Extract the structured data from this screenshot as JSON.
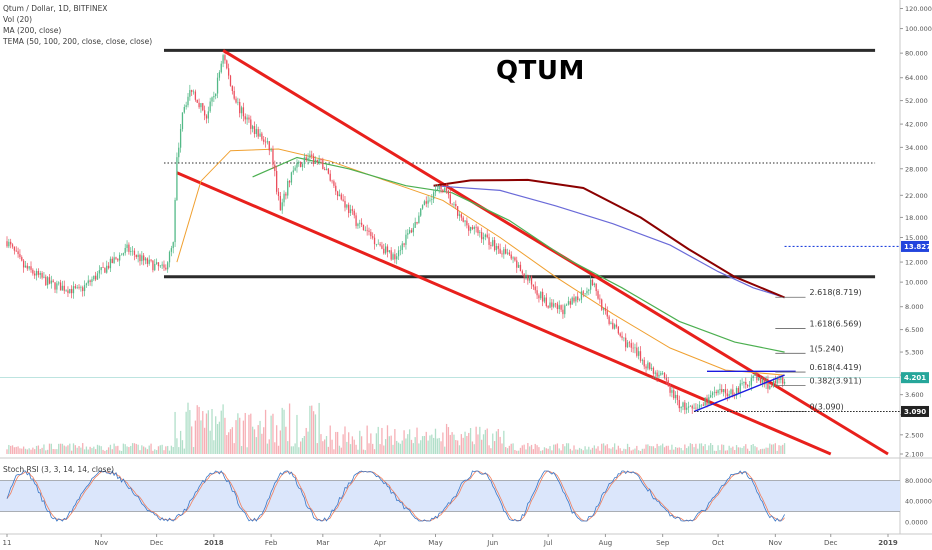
{
  "header": {
    "symbol_line": "Qtum / Dollar, 1D, BITFINEX",
    "vol_line": "Vol (20)",
    "ma_line": "MA (200, close)",
    "tema_line": "TEMA (50, 100, 200, close, close, close)",
    "stoch_line": "Stoch RSI (3, 3, 14, 14, close)"
  },
  "annotation_title": "QTUM",
  "colors": {
    "up": "#53b987",
    "down": "#eb4d5c",
    "channel": "#e8201c",
    "level": "#2b2b2b",
    "ma": "#f0a030",
    "tema50": "#4caf50",
    "tema100": "#6a6ad8",
    "tema200": "#8b0000",
    "triangle": "#1a1ae0",
    "stoch_k": "#3a78c8",
    "stoch_d": "#f08060",
    "stoch_band": "#dbe6fb"
  },
  "chart_data": {
    "type": "candlestick",
    "title": "QTUM",
    "y_scale": "log",
    "ylim": [
      2.1,
      125
    ],
    "price_axis_labels": [
      "120.000",
      "100.000",
      "80.000",
      "64.000",
      "52.000",
      "42.000",
      "34.000",
      "28.000",
      "22.000",
      "18.000",
      "15.000",
      "12.000",
      "10.000",
      "8.000",
      "6.500",
      "5.300",
      "4.300",
      "3.600",
      "3.000",
      "2.500",
      "2.100"
    ],
    "price_axis_values": [
      120,
      100,
      80,
      64,
      52,
      42,
      34,
      28,
      22,
      18,
      15,
      12,
      10,
      8,
      6.5,
      5.3,
      4.3,
      3.6,
      3.0,
      2.5,
      2.1
    ],
    "x_labels": [
      "11",
      "Nov",
      "Dec",
      "2018",
      "Feb",
      "Mar",
      "Apr",
      "May",
      "Jun",
      "Jul",
      "Aug",
      "Sep",
      "Oct",
      "Nov",
      "Dec",
      "2019"
    ],
    "x_dates": [
      "2017-09-11",
      "2017-11-01",
      "2017-12-01",
      "2018-01-01",
      "2018-02-01",
      "2018-03-01",
      "2018-04-01",
      "2018-05-01",
      "2018-06-01",
      "2018-07-01",
      "2018-08-01",
      "2018-09-01",
      "2018-10-01",
      "2018-11-01",
      "2018-12-01",
      "2019-01-01"
    ],
    "price_path": [
      [
        "2017-09-11",
        14.5
      ],
      [
        "2017-09-20",
        11.5
      ],
      [
        "2017-10-05",
        9.8
      ],
      [
        "2017-10-20",
        9.2
      ],
      [
        "2017-11-01",
        11.0
      ],
      [
        "2017-11-15",
        13.5
      ],
      [
        "2017-11-25",
        12.0
      ],
      [
        "2017-12-05",
        11.2
      ],
      [
        "2017-12-10",
        14.0
      ],
      [
        "2017-12-12",
        30.0
      ],
      [
        "2017-12-15",
        48.0
      ],
      [
        "2017-12-20",
        58.0
      ],
      [
        "2017-12-28",
        45.0
      ],
      [
        "2018-01-02",
        57.0
      ],
      [
        "2018-01-06",
        80.0
      ],
      [
        "2018-01-10",
        60.0
      ],
      [
        "2018-01-15",
        48.0
      ],
      [
        "2018-01-22",
        41.0
      ],
      [
        "2018-02-01",
        33.0
      ],
      [
        "2018-02-06",
        19.0
      ],
      [
        "2018-02-12",
        27.0
      ],
      [
        "2018-02-20",
        31.0
      ],
      [
        "2018-03-01",
        29.0
      ],
      [
        "2018-03-10",
        22.0
      ],
      [
        "2018-03-20",
        17.0
      ],
      [
        "2018-03-30",
        14.5
      ],
      [
        "2018-04-08",
        12.5
      ],
      [
        "2018-04-20",
        17.0
      ],
      [
        "2018-04-28",
        22.0
      ],
      [
        "2018-05-05",
        23.5
      ],
      [
        "2018-05-15",
        17.5
      ],
      [
        "2018-05-28",
        15.0
      ],
      [
        "2018-06-10",
        12.5
      ],
      [
        "2018-06-24",
        9.5
      ],
      [
        "2018-07-01",
        8.0
      ],
      [
        "2018-07-10",
        7.8
      ],
      [
        "2018-07-25",
        10.0
      ],
      [
        "2018-08-01",
        7.4
      ],
      [
        "2018-08-10",
        6.0
      ],
      [
        "2018-08-25",
        4.6
      ],
      [
        "2018-09-01",
        4.2
      ],
      [
        "2018-09-10",
        3.3
      ],
      [
        "2018-09-18",
        3.09
      ],
      [
        "2018-09-28",
        3.6
      ],
      [
        "2018-10-10",
        3.7
      ],
      [
        "2018-10-20",
        4.2
      ],
      [
        "2018-10-30",
        3.9
      ],
      [
        "2018-11-06",
        4.2
      ]
    ],
    "moving_averages": [
      {
        "name": "MA (200, close)",
        "points": [
          [
            "2017-12-12",
            12.0
          ],
          [
            "2017-12-25",
            25.0
          ],
          [
            "2018-01-10",
            33.0
          ],
          [
            "2018-02-05",
            33.5
          ],
          [
            "2018-03-05",
            30.0
          ],
          [
            "2018-04-05",
            25.0
          ],
          [
            "2018-05-05",
            21.0
          ],
          [
            "2018-06-05",
            15.0
          ],
          [
            "2018-07-05",
            10.5
          ],
          [
            "2018-08-05",
            7.5
          ],
          [
            "2018-09-05",
            5.5
          ],
          [
            "2018-10-05",
            4.5
          ],
          [
            "2018-11-06",
            4.3
          ]
        ]
      },
      {
        "name": "TEMA 50",
        "points": [
          [
            "2018-01-22",
            26.0
          ],
          [
            "2018-02-15",
            31.0
          ],
          [
            "2018-03-15",
            28.0
          ],
          [
            "2018-04-15",
            24.0
          ],
          [
            "2018-05-10",
            22.5
          ],
          [
            "2018-06-10",
            17.5
          ],
          [
            "2018-07-10",
            12.5
          ],
          [
            "2018-08-10",
            9.5
          ],
          [
            "2018-09-10",
            7.0
          ],
          [
            "2018-10-10",
            5.8
          ],
          [
            "2018-11-06",
            5.3
          ]
        ]
      },
      {
        "name": "TEMA 100",
        "points": [
          [
            "2018-04-30",
            24.0
          ],
          [
            "2018-06-05",
            23.0
          ],
          [
            "2018-07-05",
            20.0
          ],
          [
            "2018-08-05",
            17.0
          ],
          [
            "2018-09-05",
            14.0
          ],
          [
            "2018-10-01",
            11.0
          ],
          [
            "2018-10-20",
            9.5
          ],
          [
            "2018-11-06",
            8.7
          ]
        ]
      },
      {
        "name": "TEMA 200",
        "points": [
          [
            "2018-04-30",
            24.0
          ],
          [
            "2018-05-20",
            25.2
          ],
          [
            "2018-06-20",
            25.3
          ],
          [
            "2018-07-20",
            23.5
          ],
          [
            "2018-08-20",
            18.0
          ],
          [
            "2018-09-15",
            13.5
          ],
          [
            "2018-10-10",
            10.5
          ],
          [
            "2018-11-06",
            8.7
          ]
        ]
      }
    ],
    "channel_lines": [
      {
        "from": [
          "2017-12-12",
          27.0
        ],
        "to": [
          "2018-12-01",
          2.1
        ]
      },
      {
        "from": [
          "2018-01-06",
          82.0
        ],
        "to": [
          "2019-01-01",
          2.1
        ]
      }
    ],
    "horizontal_levels": [
      {
        "value": 82.0,
        "from": "2017-12-05",
        "to": "2018-12-25",
        "style": "solid"
      },
      {
        "value": 10.5,
        "from": "2017-12-05",
        "to": "2018-12-25",
        "style": "solid"
      },
      {
        "value": 29.5,
        "from": "2017-12-05",
        "to": "2018-12-25",
        "style": "dotted"
      }
    ],
    "triangle": [
      {
        "from": [
          "2018-09-18",
          3.09
        ],
        "to": [
          "2018-11-06",
          4.3
        ]
      },
      {
        "from": [
          "2018-09-25",
          4.45
        ],
        "to": [
          "2018-11-12",
          4.45
        ]
      }
    ],
    "fibonacci": [
      {
        "label": "2.618(8.719)",
        "value": 8.719
      },
      {
        "label": "1.618(6.569)",
        "value": 6.569
      },
      {
        "label": "1(5.240)",
        "value": 5.24
      },
      {
        "label": "0.618(4.419)",
        "value": 4.419
      },
      {
        "label": "0.382(3.911)",
        "value": 3.911
      },
      {
        "label": "0(3.090)",
        "value": 3.09
      }
    ],
    "price_tags": [
      {
        "text": "13.827",
        "value": 13.827,
        "color": "#2244dd"
      },
      {
        "text": "4.201",
        "value": 4.201,
        "color": "#26a69a"
      },
      {
        "text": "3.090",
        "value": 3.09,
        "color": "#222222"
      }
    ],
    "stoch_axis_labels": [
      "80.0000",
      "40.0000",
      "0.0000"
    ],
    "stoch_axis_values": [
      80,
      40,
      0
    ],
    "stoch_band": [
      20,
      80
    ]
  }
}
